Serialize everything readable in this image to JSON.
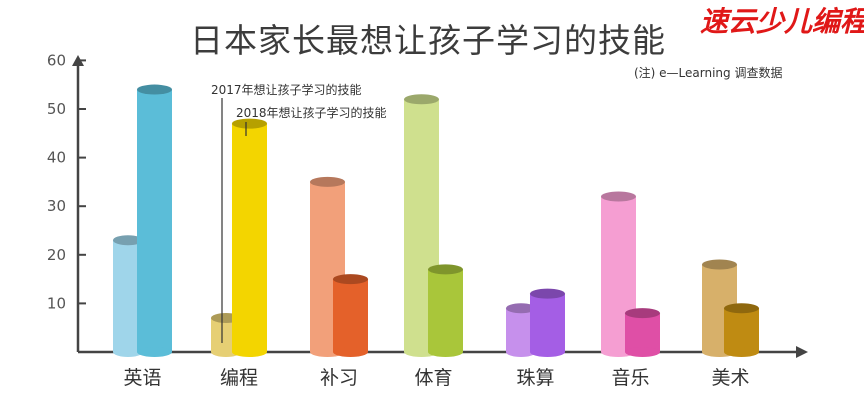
{
  "brand_text": "速云少儿编程",
  "chart_data": {
    "type": "bar",
    "title": "日本家长最想让孩子学习的技能",
    "note": "(注) e—Learning 调查数据",
    "categories": [
      "英语",
      "编程",
      "补习",
      "体育",
      "珠算",
      "音乐",
      "美术"
    ],
    "series": [
      {
        "name": "2017年想让孩子学习的技能",
        "values": [
          23,
          7,
          35,
          52,
          9,
          32,
          18
        ],
        "colors": [
          "#9fd5ea",
          "#e6cf74",
          "#f2a07a",
          "#cfe08e",
          "#c690ec",
          "#f59ed2",
          "#d7b06a"
        ]
      },
      {
        "name": "2018年想让孩子学习的技能",
        "values": [
          54,
          47,
          15,
          17,
          12,
          8,
          9
        ],
        "colors": [
          "#5bbdd8",
          "#f3d500",
          "#e4612a",
          "#a9c63a",
          "#a45ee5",
          "#df4fa6",
          "#bf8b12"
        ]
      }
    ],
    "yticks": [
      10,
      20,
      30,
      40,
      50,
      60
    ],
    "ylim": [
      0,
      60
    ],
    "grid": false
  }
}
